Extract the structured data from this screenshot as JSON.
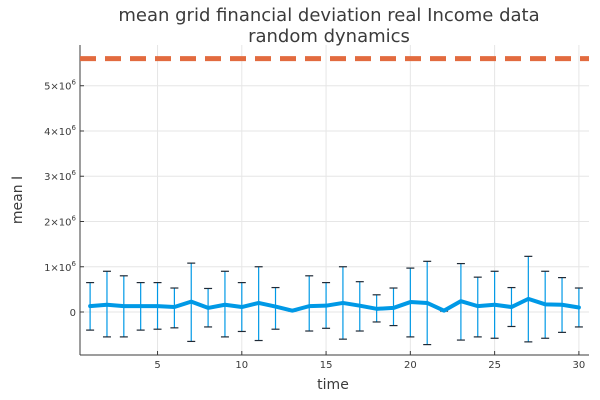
{
  "chart_data": {
    "type": "line",
    "title_line1": "mean grid financial deviation real Income data",
    "title_line2": "random dynamics",
    "xlabel": "time",
    "ylabel": "mean I",
    "xlim": [
      0.4,
      30.6
    ],
    "ylim": [
      -950000,
      5900000
    ],
    "grid": true,
    "legend": "none",
    "x_ticks": [
      {
        "value": 5,
        "label": "5"
      },
      {
        "value": 10,
        "label": "10"
      },
      {
        "value": 15,
        "label": "15"
      },
      {
        "value": 20,
        "label": "20"
      },
      {
        "value": 25,
        "label": "25"
      },
      {
        "value": 30,
        "label": "30"
      }
    ],
    "y_ticks": [
      {
        "value": 0,
        "label": "0",
        "sup": ""
      },
      {
        "value": 1000000,
        "label": "1×10",
        "sup": "6"
      },
      {
        "value": 2000000,
        "label": "2×10",
        "sup": "6"
      },
      {
        "value": 3000000,
        "label": "3×10",
        "sup": "6"
      },
      {
        "value": 4000000,
        "label": "4×10",
        "sup": "6"
      },
      {
        "value": 5000000,
        "label": "5×10",
        "sup": "6"
      }
    ],
    "mean_series": {
      "x": [
        1,
        2,
        3,
        4,
        5,
        6,
        7,
        8,
        9,
        10,
        11,
        12,
        13,
        14,
        15,
        16,
        17,
        18,
        19,
        20,
        21,
        22,
        23,
        24,
        25,
        26,
        27,
        28,
        29,
        30
      ],
      "y": [
        130000,
        160000,
        130000,
        130000,
        130000,
        110000,
        230000,
        90000,
        160000,
        110000,
        200000,
        120000,
        30000,
        130000,
        140000,
        200000,
        140000,
        70000,
        90000,
        220000,
        200000,
        30000,
        240000,
        130000,
        160000,
        110000,
        290000,
        170000,
        160000,
        100000
      ],
      "err_low": [
        -400000,
        -550000,
        -550000,
        -400000,
        -380000,
        -350000,
        -650000,
        -330000,
        -550000,
        -430000,
        -630000,
        -380000,
        20000,
        -420000,
        -360000,
        -600000,
        -420000,
        -220000,
        -300000,
        -550000,
        -720000,
        20000,
        -620000,
        -550000,
        -580000,
        -320000,
        -660000,
        -580000,
        -450000,
        -330000
      ],
      "err_high": [
        650000,
        900000,
        800000,
        650000,
        650000,
        530000,
        1080000,
        520000,
        900000,
        650000,
        1000000,
        540000,
        40000,
        800000,
        650000,
        1000000,
        670000,
        380000,
        530000,
        970000,
        1120000,
        40000,
        1070000,
        770000,
        900000,
        540000,
        1230000,
        900000,
        760000,
        530000
      ],
      "color": "#0099e6",
      "cap_color": "#1f2a36"
    },
    "reference_line": {
      "y": 5600000,
      "color": "#e26b3f",
      "style": "dashed"
    }
  }
}
